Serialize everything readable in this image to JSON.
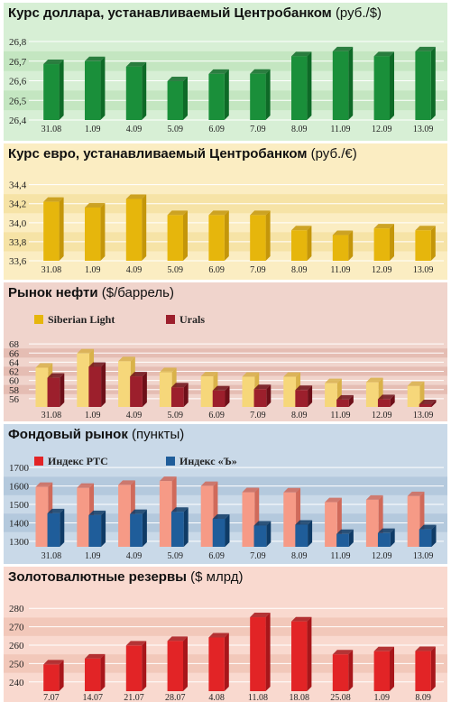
{
  "panels": [
    {
      "title_bold": "Курс доллара, устанавливаемый Центробанком",
      "title_unit": "(руб./$)",
      "chart_data": {
        "type": "bar",
        "categories": [
          "31.08",
          "1.09",
          "4.09",
          "5.09",
          "6.09",
          "7.09",
          "8.09",
          "11.09",
          "12.09",
          "13.09"
        ],
        "series": [
          {
            "values": [
              26.685,
              26.7,
              26.672,
              26.598,
              26.635,
              26.636,
              26.725,
              26.75,
              26.725,
              26.75
            ]
          }
        ],
        "yticks": [
          26.4,
          26.5,
          26.6,
          26.7,
          26.8
        ],
        "ylim": [
          26.4,
          26.86
        ],
        "legend": []
      },
      "colors": {
        "bg": "#d7efd5",
        "band": "#c4e6c1",
        "grid": "#ffffff",
        "front": "#1a8f3a",
        "side": "#0e6a27",
        "light_front": "#3daa5c",
        "light_side": "#1e7a38"
      }
    },
    {
      "title_bold": "Курс евро, устанавливаемый Центробанком",
      "title_unit": "(руб./€)",
      "chart_data": {
        "type": "bar",
        "categories": [
          "31.08",
          "1.09",
          "4.09",
          "5.09",
          "6.09",
          "7.09",
          "8.09",
          "11.09",
          "12.09",
          "13.09"
        ],
        "series": [
          {
            "values": [
              34.22,
              34.16,
              34.25,
              34.08,
              34.08,
              34.08,
              33.92,
              33.87,
              33.94,
              33.92
            ]
          }
        ],
        "yticks": [
          33.6,
          33.8,
          34.0,
          34.2,
          34.4
        ],
        "ylim": [
          33.6,
          34.52
        ],
        "legend": []
      },
      "colors": {
        "bg": "#fbedc2",
        "band": "#f6e3a6",
        "grid": "#ffffff",
        "front": "#e6b60c",
        "side": "#c4960a",
        "light_front": "#f6d77a",
        "light_side": "#d9b24a"
      }
    },
    {
      "title_bold": "Рынок нефти",
      "title_unit": "($/баррель)",
      "chart_data": {
        "type": "bar",
        "categories": [
          "31.08",
          "1.09",
          "4.09",
          "5.09",
          "6.09",
          "7.09",
          "8.09",
          "11.09",
          "12.09",
          "13.09"
        ],
        "series": [
          {
            "name": "Siberian Light",
            "values": [
              62.8,
              65.9,
              64.2,
              61.8,
              60.9,
              60.8,
              60.8,
              59.4,
              59.6,
              58.8
            ]
          },
          {
            "name": "Urals",
            "values": [
              60.6,
              63.0,
              60.9,
              58.5,
              57.8,
              58.1,
              57.9,
              55.8,
              55.9,
              54.8
            ]
          }
        ],
        "yticks": [
          56,
          58,
          60,
          62,
          64,
          66,
          68
        ],
        "ylim": [
          54.2,
          70
        ],
        "legend": [
          "Siberian Light",
          "Urals"
        ]
      },
      "colors": {
        "bg": "#f0d4cc",
        "band": "#e5bdb3",
        "grid": "#ffffff",
        "front": "#e6b60c",
        "side": "#c4960a",
        "light_front": "#f6d77a",
        "light_side": "#d9b24a",
        "front2": "#9c1f2c",
        "side2": "#6e1019"
      }
    },
    {
      "title_bold": "Фондовый рынок",
      "title_unit": "(пункты)",
      "chart_data": {
        "type": "bar",
        "categories": [
          "31.08",
          "1.09",
          "4.09",
          "5.09",
          "6.09",
          "7.09",
          "8.09",
          "11.09",
          "12.09",
          "13.09"
        ],
        "series": [
          {
            "name": "Индекс РТС",
            "values": [
              1595,
              1590,
              1606,
              1627,
              1600,
              1566,
              1565,
              1512,
              1525,
              1545
            ]
          },
          {
            "name": "Индекс «Ъ»",
            "values": [
              1452,
              1442,
              1448,
              1460,
              1422,
              1385,
              1390,
              1340,
              1345,
              1365
            ]
          }
        ],
        "yticks": [
          1300,
          1400,
          1500,
          1600,
          1700
        ],
        "ylim": [
          1270,
          1740
        ],
        "legend": [
          "Индекс РТС",
          "Индекс «Ъ»"
        ]
      },
      "colors": {
        "bg": "#c9d9e8",
        "band": "#b4c9dd",
        "grid": "#ffffff",
        "front": "#e22426",
        "side": "#a8161a",
        "light_front": "#f69a86",
        "light_side": "#d06a5a",
        "front2": "#1f5d9a",
        "side2": "#0f3b66"
      }
    },
    {
      "title_bold": "Золотовалютные резервы",
      "title_unit": "($ млрд)",
      "chart_data": {
        "type": "bar",
        "categories": [
          "7.07",
          "14.07",
          "21.07",
          "28.07",
          "4.08",
          "11.08",
          "18.08",
          "25.08",
          "1.09",
          "8.09"
        ],
        "series": [
          {
            "values": [
              249.5,
              252.7,
              259.8,
              262.3,
              264.2,
              275.2,
              272.9,
              255.0,
              256.7,
              256.8
            ]
          }
        ],
        "yticks": [
          240,
          250,
          260,
          270,
          280
        ],
        "ylim": [
          235,
          286
        ],
        "legend": []
      },
      "colors": {
        "bg": "#f9d9cf",
        "band": "#f2c8ba",
        "grid": "#ffffff",
        "front": "#e22426",
        "side": "#a8161a",
        "light_front": "#f69a86",
        "light_side": "#d06a5a"
      }
    }
  ]
}
